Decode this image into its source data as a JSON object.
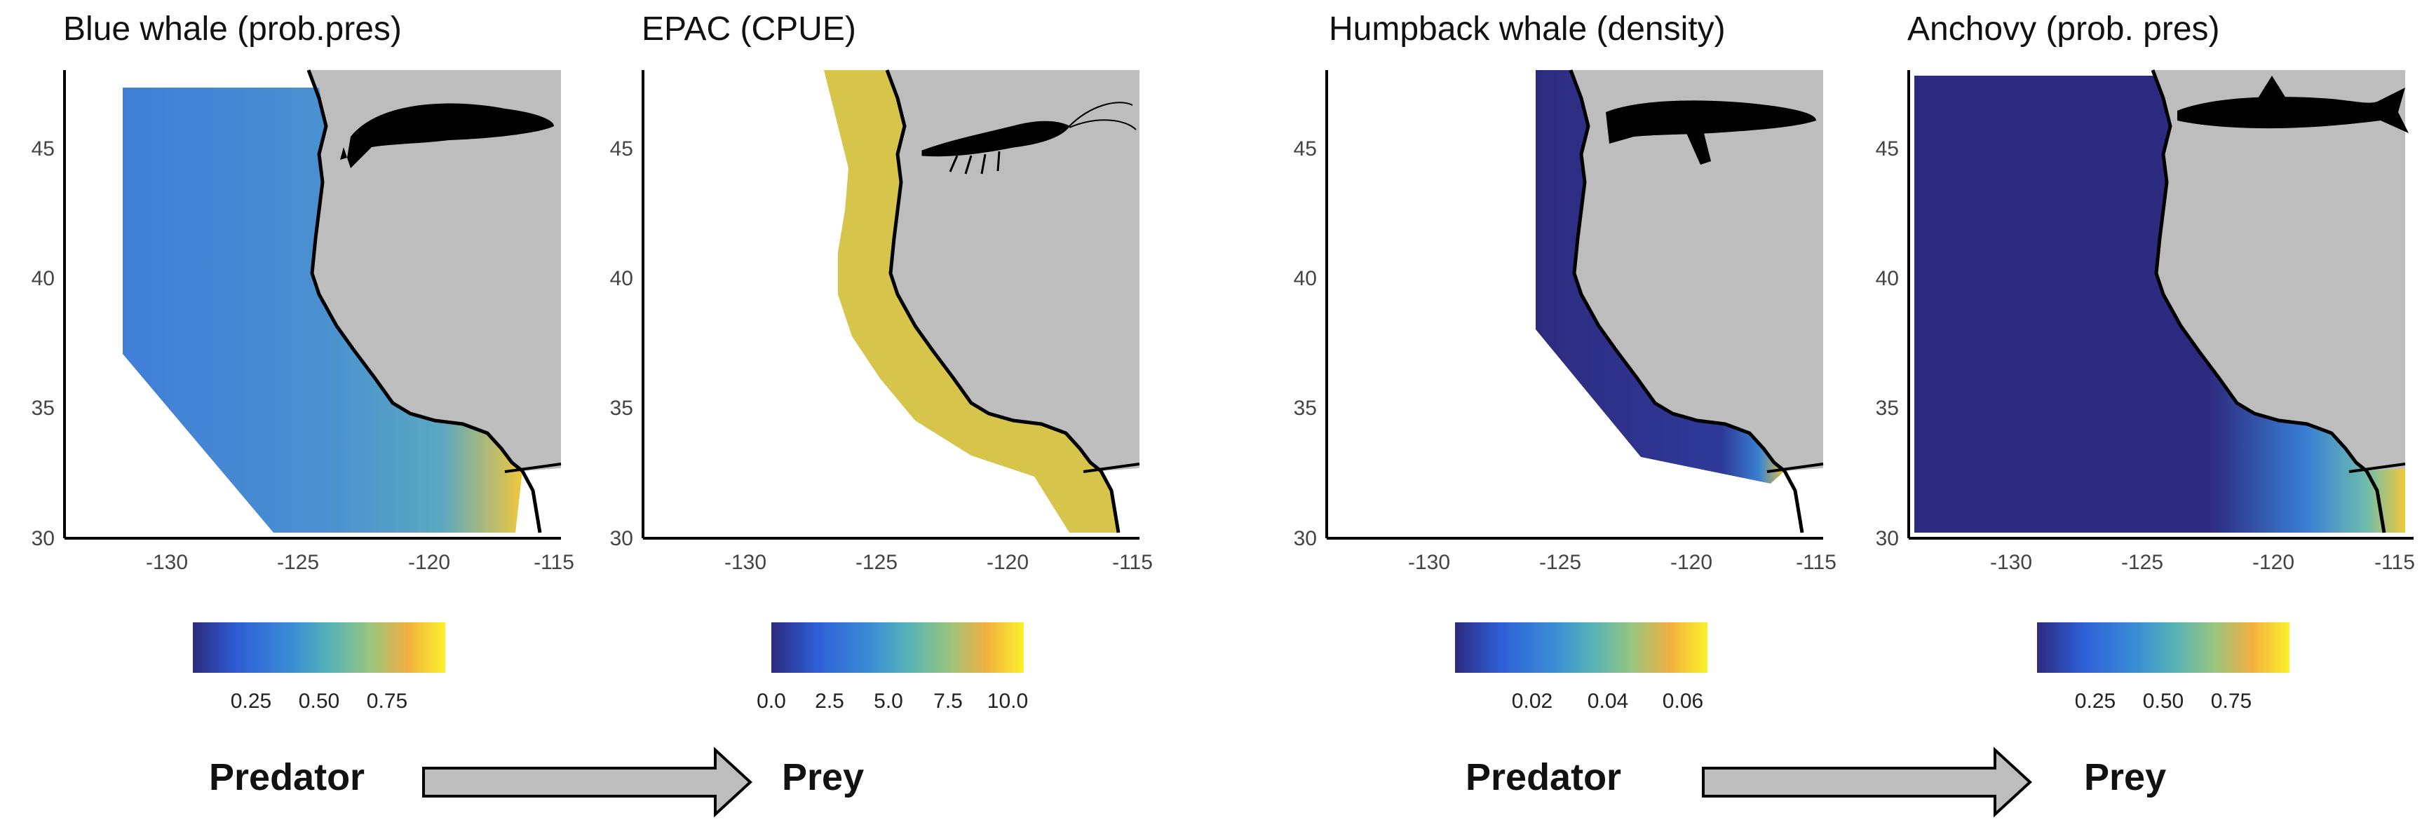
{
  "panels": [
    {
      "title": "Blue whale (prob.pres)",
      "x_ticks": [
        "-130",
        "-125",
        "-120",
        "-115"
      ],
      "y_ticks": [
        "45",
        "40",
        "35",
        "30"
      ],
      "colorbar_ticks": [
        "0.25",
        "0.50",
        "0.75"
      ],
      "colormap": [
        "#2d2b7f",
        "#2f5fd6",
        "#3b8fd4",
        "#58b4b4",
        "#96c57e",
        "#e0c048",
        "#f8d42e",
        "#fbf02a"
      ],
      "silhouette": "blue-whale-icon"
    },
    {
      "title": "EPAC (CPUE)",
      "x_ticks": [
        "-130",
        "-125",
        "-120",
        "-115"
      ],
      "y_ticks": [
        "45",
        "40",
        "35",
        "30"
      ],
      "colorbar_ticks": [
        "0.0",
        "2.5",
        "5.0",
        "7.5",
        "10.0"
      ],
      "colormap": [
        "#2d2b7f",
        "#2f5fd6",
        "#3b8fd4",
        "#58b4b4",
        "#96c57e",
        "#e0c048",
        "#f8d42e",
        "#fbf02a"
      ],
      "silhouette": "krill-icon"
    },
    {
      "title": "Humpback whale (density)",
      "x_ticks": [
        "-130",
        "-125",
        "-120",
        "-115"
      ],
      "y_ticks": [
        "45",
        "40",
        "35",
        "30"
      ],
      "colorbar_ticks": [
        "0.02",
        "0.04",
        "0.06"
      ],
      "colormap": [
        "#2d2b7f",
        "#2f5fd6",
        "#3b8fd4",
        "#58b4b4",
        "#96c57e",
        "#e0c048",
        "#f8d42e",
        "#fbf02a"
      ],
      "silhouette": "humpback-whale-icon"
    },
    {
      "title": "Anchovy (prob. pres)",
      "x_ticks": [
        "-130",
        "-125",
        "-120",
        "-115"
      ],
      "y_ticks": [
        "45",
        "40",
        "35",
        "30"
      ],
      "colorbar_ticks": [
        "0.25",
        "0.50",
        "0.75"
      ],
      "colormap": [
        "#2d2b7f",
        "#2f5fd6",
        "#3b8fd4",
        "#58b4b4",
        "#96c57e",
        "#e0c048",
        "#f8d42e",
        "#fbf02a"
      ],
      "silhouette": "anchovy-icon"
    }
  ],
  "flows": [
    {
      "from": "Predator",
      "to": "Prey"
    },
    {
      "from": "Predator",
      "to": "Prey"
    }
  ],
  "colors": {
    "land": "#bdbdbd",
    "ocean_low": "#2d2b7f",
    "arrow_fill": "#bdbdbd"
  }
}
